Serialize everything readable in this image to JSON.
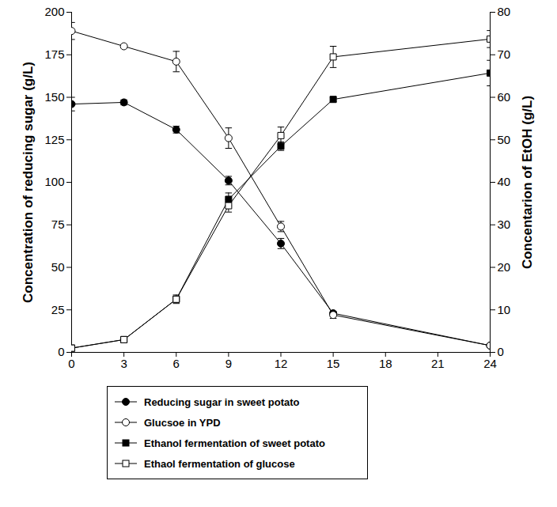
{
  "chart_data": {
    "type": "line",
    "y_label": "Concentration of reducing sugar (g/L)",
    "y2_label": "Concentarion of EtOH (g/L)",
    "x": [
      0,
      3,
      6,
      9,
      12,
      15,
      24
    ],
    "xlim": [
      0,
      24
    ],
    "xticks": [
      0,
      3,
      6,
      9,
      12,
      15,
      18,
      21,
      24
    ],
    "ylim": [
      0,
      200
    ],
    "yticks": [
      0,
      25,
      50,
      75,
      100,
      125,
      150,
      175,
      200
    ],
    "y2lim": [
      0,
      80
    ],
    "y2ticks": [
      0,
      10,
      20,
      30,
      40,
      50,
      60,
      70,
      80
    ],
    "grid": false,
    "legend": "bottom",
    "series": [
      {
        "name": "Reducing sugar in sweet potato",
        "color": "#000000",
        "marker": "circle",
        "line_style": "solid",
        "axis": "y",
        "values": [
          146,
          147,
          131,
          101,
          64,
          23,
          4
        ],
        "errors": [
          4,
          1.5,
          2,
          2.5,
          3,
          1,
          0.5
        ]
      },
      {
        "name": "Glucsoe in YPD",
        "color": "#000000",
        "marker": "circle-open",
        "line_style": "solid",
        "axis": "y",
        "values": [
          189,
          180,
          171,
          126,
          74,
          22,
          4
        ],
        "errors": [
          5,
          1,
          6,
          6,
          3,
          2,
          1
        ]
      },
      {
        "name": "Ethanol fermentation of sweet potato",
        "color": "#000000",
        "marker": "square",
        "line_style": "solid",
        "axis": "y2",
        "values": [
          1,
          3,
          12.5,
          36,
          48.5,
          59.5,
          65.7
        ],
        "errors": [
          0.5,
          0.5,
          0.5,
          1.5,
          1,
          0.5,
          3
        ]
      },
      {
        "name": "Ethaol fermentation of glucose",
        "color": "#000000",
        "marker": "square-open",
        "line_style": "solid",
        "axis": "y2",
        "values": [
          1,
          3,
          12.5,
          34.5,
          51,
          69.5,
          73.7
        ],
        "errors": [
          0.5,
          0.5,
          1,
          1.5,
          2,
          2.5,
          2
        ]
      }
    ]
  }
}
